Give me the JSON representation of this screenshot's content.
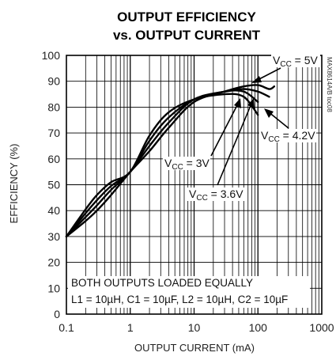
{
  "chart_data": {
    "type": "line",
    "title": "OUTPUT EFFICIENCY",
    "subtitle": "vs. OUTPUT CURRENT",
    "xlabel": "OUTPUT CURRENT (mA)",
    "ylabel": "EFFICIENCY (%)",
    "xscale": "log",
    "xlim": [
      0.1,
      1000
    ],
    "ylim": [
      0,
      100
    ],
    "xticks": [
      "0.1",
      "1",
      "10",
      "100",
      "1000"
    ],
    "yticks": [
      "0",
      "10",
      "20",
      "30",
      "40",
      "50",
      "60",
      "70",
      "80",
      "90",
      "100"
    ],
    "grid": true,
    "side_tag": "MAX8614A/B toc08",
    "note_lines": [
      "BOTH OUTPUTS LOADED EQUALLY",
      "L1 = 10µH, C1 = 10µF, L2 = 10µH, C2 = 10µF"
    ],
    "series": [
      {
        "name": "VCC = 5V",
        "label_main": "V",
        "label_sub": "CC",
        "label_rest": " = 5V",
        "x": [
          0.1,
          0.2,
          0.3,
          0.5,
          1,
          2,
          4,
          10,
          30,
          60,
          100,
          150,
          180
        ],
        "y": [
          30,
          36,
          40,
          46,
          55,
          63,
          72,
          82,
          86,
          88,
          88.5,
          87,
          88
        ]
      },
      {
        "name": "VCC = 4.2V",
        "label_main": "V",
        "label_sub": "CC",
        "label_rest": " = 4.2V",
        "x": [
          0.1,
          0.2,
          0.3,
          0.5,
          1,
          2,
          4,
          10,
          30,
          60,
          100,
          150
        ],
        "y": [
          30,
          37.5,
          42,
          48,
          55,
          65,
          74,
          83,
          86,
          87,
          86,
          84
        ]
      },
      {
        "name": "VCC = 3.6V",
        "label_main": "V",
        "label_sub": "CC",
        "label_rest": " = 3.6V",
        "x": [
          0.1,
          0.2,
          0.3,
          0.5,
          1,
          2,
          4,
          10,
          30,
          60,
          100
        ],
        "y": [
          30,
          39,
          44,
          49.5,
          55,
          67,
          76,
          83,
          86,
          86,
          82
        ]
      },
      {
        "name": "VCC = 3V",
        "label_main": "V",
        "label_sub": "CC",
        "label_rest": " = 3V",
        "x": [
          0.1,
          0.2,
          0.3,
          0.5,
          1,
          2,
          4,
          10,
          30,
          60,
          100
        ],
        "y": [
          30,
          40.5,
          46,
          51,
          55,
          69,
          78,
          83,
          85,
          84,
          77
        ]
      }
    ]
  }
}
